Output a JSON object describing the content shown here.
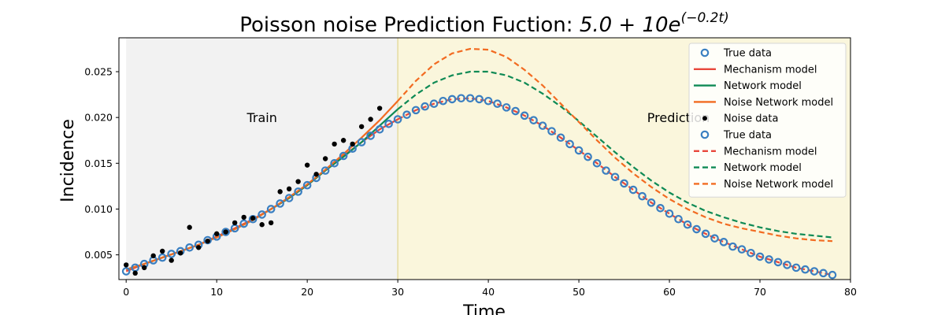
{
  "chart_data": {
    "type": "line",
    "title": "Poisson noise Prediction Fuction: ",
    "title_formula": {
      "base": "5.0 + 10e",
      "exponent": "(−0.2t)"
    },
    "xlabel": "Time",
    "ylabel": "Incidence",
    "xlim": [
      -0.8,
      80
    ],
    "ylim": [
      0.0023,
      0.0287
    ],
    "xticks": [
      0,
      10,
      20,
      30,
      40,
      50,
      60,
      70,
      80
    ],
    "yticks": [
      0.005,
      0.01,
      0.015,
      0.02,
      0.025
    ],
    "ytick_labels": [
      "0.005",
      "0.010",
      "0.015",
      "0.020",
      "0.025"
    ],
    "grid": false,
    "legend_position": "top-right",
    "regions": [
      {
        "label": "Train",
        "x_start": 0,
        "x_end": 30,
        "color": "#f2f2f2"
      },
      {
        "label": "Prediction",
        "x_start": 30,
        "x_end": 80,
        "color": "#faf6dc"
      }
    ],
    "divider_x": 30,
    "true_data": {
      "x": [
        0,
        1,
        2,
        3,
        4,
        5,
        6,
        7,
        8,
        9,
        10,
        11,
        12,
        13,
        14,
        15,
        16,
        17,
        18,
        19,
        20,
        21,
        22,
        23,
        24,
        25,
        26,
        27,
        28,
        29,
        30,
        31,
        32,
        33,
        34,
        35,
        36,
        37,
        38,
        39,
        40,
        41,
        42,
        43,
        44,
        45,
        46,
        47,
        48,
        49,
        50,
        51,
        52,
        53,
        54,
        55,
        56,
        57,
        58,
        59,
        60,
        61,
        62,
        63,
        64,
        65,
        66,
        67,
        68,
        69,
        70,
        71,
        72,
        73,
        74,
        75,
        76,
        77,
        78
      ],
      "y": [
        0.0032,
        0.0036,
        0.004,
        0.0044,
        0.0047,
        0.0051,
        0.0054,
        0.0058,
        0.0061,
        0.0066,
        0.007,
        0.0075,
        0.0079,
        0.0084,
        0.0089,
        0.0094,
        0.01,
        0.0106,
        0.0112,
        0.0119,
        0.0126,
        0.0134,
        0.0142,
        0.015,
        0.0158,
        0.0166,
        0.0173,
        0.018,
        0.0187,
        0.0193,
        0.0198,
        0.0203,
        0.0208,
        0.0212,
        0.0215,
        0.0218,
        0.022,
        0.0221,
        0.0221,
        0.022,
        0.0218,
        0.0215,
        0.0211,
        0.0207,
        0.0202,
        0.0197,
        0.0191,
        0.0185,
        0.0178,
        0.0171,
        0.0164,
        0.0157,
        0.015,
        0.0142,
        0.0135,
        0.0128,
        0.0121,
        0.0114,
        0.0107,
        0.0101,
        0.0095,
        0.0089,
        0.0083,
        0.0078,
        0.0073,
        0.0068,
        0.0064,
        0.0059,
        0.0056,
        0.0052,
        0.0048,
        0.0045,
        0.0042,
        0.0039,
        0.0036,
        0.0034,
        0.0032,
        0.003,
        0.0028
      ]
    },
    "noise_data": {
      "x": [
        0,
        1,
        2,
        3,
        4,
        5,
        6,
        7,
        8,
        9,
        10,
        11,
        12,
        13,
        14,
        15,
        16,
        17,
        18,
        19,
        20,
        21,
        22,
        23,
        24,
        25,
        26,
        27,
        28
      ],
      "y": [
        0.0039,
        0.003,
        0.0036,
        0.0049,
        0.0054,
        0.0044,
        0.0052,
        0.008,
        0.0058,
        0.0065,
        0.0073,
        0.0075,
        0.0085,
        0.0091,
        0.009,
        0.0083,
        0.0085,
        0.0119,
        0.0122,
        0.013,
        0.0148,
        0.0138,
        0.0155,
        0.0171,
        0.0175,
        0.0171,
        0.019,
        0.0198,
        0.021
      ]
    },
    "series": [
      {
        "id": "mechanism_model",
        "color": "#e8473c",
        "x": [
          0,
          2,
          4,
          6,
          8,
          10,
          12,
          14,
          16,
          18,
          20,
          22,
          24,
          26,
          28,
          30,
          32,
          34,
          36,
          38,
          40,
          42,
          44,
          46,
          48,
          50,
          52,
          54,
          56,
          58,
          60,
          62,
          64,
          66,
          68,
          70,
          72,
          74,
          76,
          78
        ],
        "y": [
          0.0032,
          0.004,
          0.0047,
          0.0054,
          0.0061,
          0.007,
          0.0079,
          0.0089,
          0.01,
          0.0112,
          0.0126,
          0.0142,
          0.0158,
          0.0173,
          0.0187,
          0.0198,
          0.0208,
          0.0215,
          0.022,
          0.0221,
          0.0218,
          0.0211,
          0.0202,
          0.0191,
          0.0178,
          0.0164,
          0.015,
          0.0135,
          0.0121,
          0.0107,
          0.0095,
          0.0083,
          0.0073,
          0.0064,
          0.0056,
          0.0048,
          0.0042,
          0.0036,
          0.0032,
          0.0028
        ]
      },
      {
        "id": "network_model",
        "color": "#0e8a55",
        "x": [
          0,
          2,
          4,
          6,
          8,
          10,
          12,
          14,
          16,
          18,
          20,
          22,
          24,
          26,
          28,
          30,
          32,
          34,
          36,
          38,
          40,
          42,
          44,
          46,
          48,
          50,
          52,
          54,
          56,
          58,
          60,
          62,
          64,
          66,
          68,
          70,
          72,
          74,
          76,
          78
        ],
        "y": [
          0.0034,
          0.004,
          0.0047,
          0.0054,
          0.0061,
          0.0069,
          0.0078,
          0.0088,
          0.01,
          0.0112,
          0.0126,
          0.0142,
          0.0157,
          0.0173,
          0.0191,
          0.0209,
          0.0225,
          0.0238,
          0.0246,
          0.025,
          0.025,
          0.0246,
          0.0238,
          0.0226,
          0.0212,
          0.0196,
          0.0179,
          0.0162,
          0.0146,
          0.0131,
          0.0118,
          0.0107,
          0.0098,
          0.0091,
          0.0085,
          0.008,
          0.0076,
          0.0073,
          0.0071,
          0.0069
        ]
      },
      {
        "id": "noise_network_model",
        "color": "#f26b21",
        "x": [
          0,
          2,
          4,
          6,
          8,
          10,
          12,
          14,
          16,
          18,
          20,
          22,
          24,
          26,
          28,
          30,
          32,
          34,
          36,
          38,
          40,
          42,
          44,
          46,
          48,
          50,
          52,
          54,
          56,
          58,
          60,
          62,
          64,
          66,
          68,
          70,
          72,
          74,
          76,
          78
        ],
        "y": [
          0.0034,
          0.004,
          0.0047,
          0.0054,
          0.0061,
          0.0069,
          0.0078,
          0.0088,
          0.01,
          0.0113,
          0.0127,
          0.0143,
          0.016,
          0.0178,
          0.0197,
          0.0218,
          0.024,
          0.0258,
          0.027,
          0.0275,
          0.0274,
          0.0266,
          0.0252,
          0.0235,
          0.0215,
          0.0195,
          0.0175,
          0.0156,
          0.0139,
          0.0124,
          0.0111,
          0.01,
          0.0091,
          0.0084,
          0.0079,
          0.0075,
          0.0071,
          0.0068,
          0.0066,
          0.0065
        ]
      }
    ],
    "legend": [
      {
        "label": "True data",
        "marker": "circle",
        "color": "#3a7fc1"
      },
      {
        "label": "Mechanism model",
        "marker": "line",
        "color": "#e8473c"
      },
      {
        "label": "Network model",
        "marker": "line",
        "color": "#0e8a55"
      },
      {
        "label": "Noise Network model",
        "marker": "line",
        "color": "#f26b21"
      },
      {
        "label": "Noise data",
        "marker": "dot",
        "color": "#000000"
      },
      {
        "label": "True data",
        "marker": "circle",
        "color": "#3a7fc1"
      },
      {
        "label": "Mechanism model",
        "marker": "dash",
        "color": "#e8473c"
      },
      {
        "label": "Network model",
        "marker": "dash",
        "color": "#0e8a55"
      },
      {
        "label": "Noise Network model",
        "marker": "dash",
        "color": "#f26b21"
      }
    ]
  }
}
